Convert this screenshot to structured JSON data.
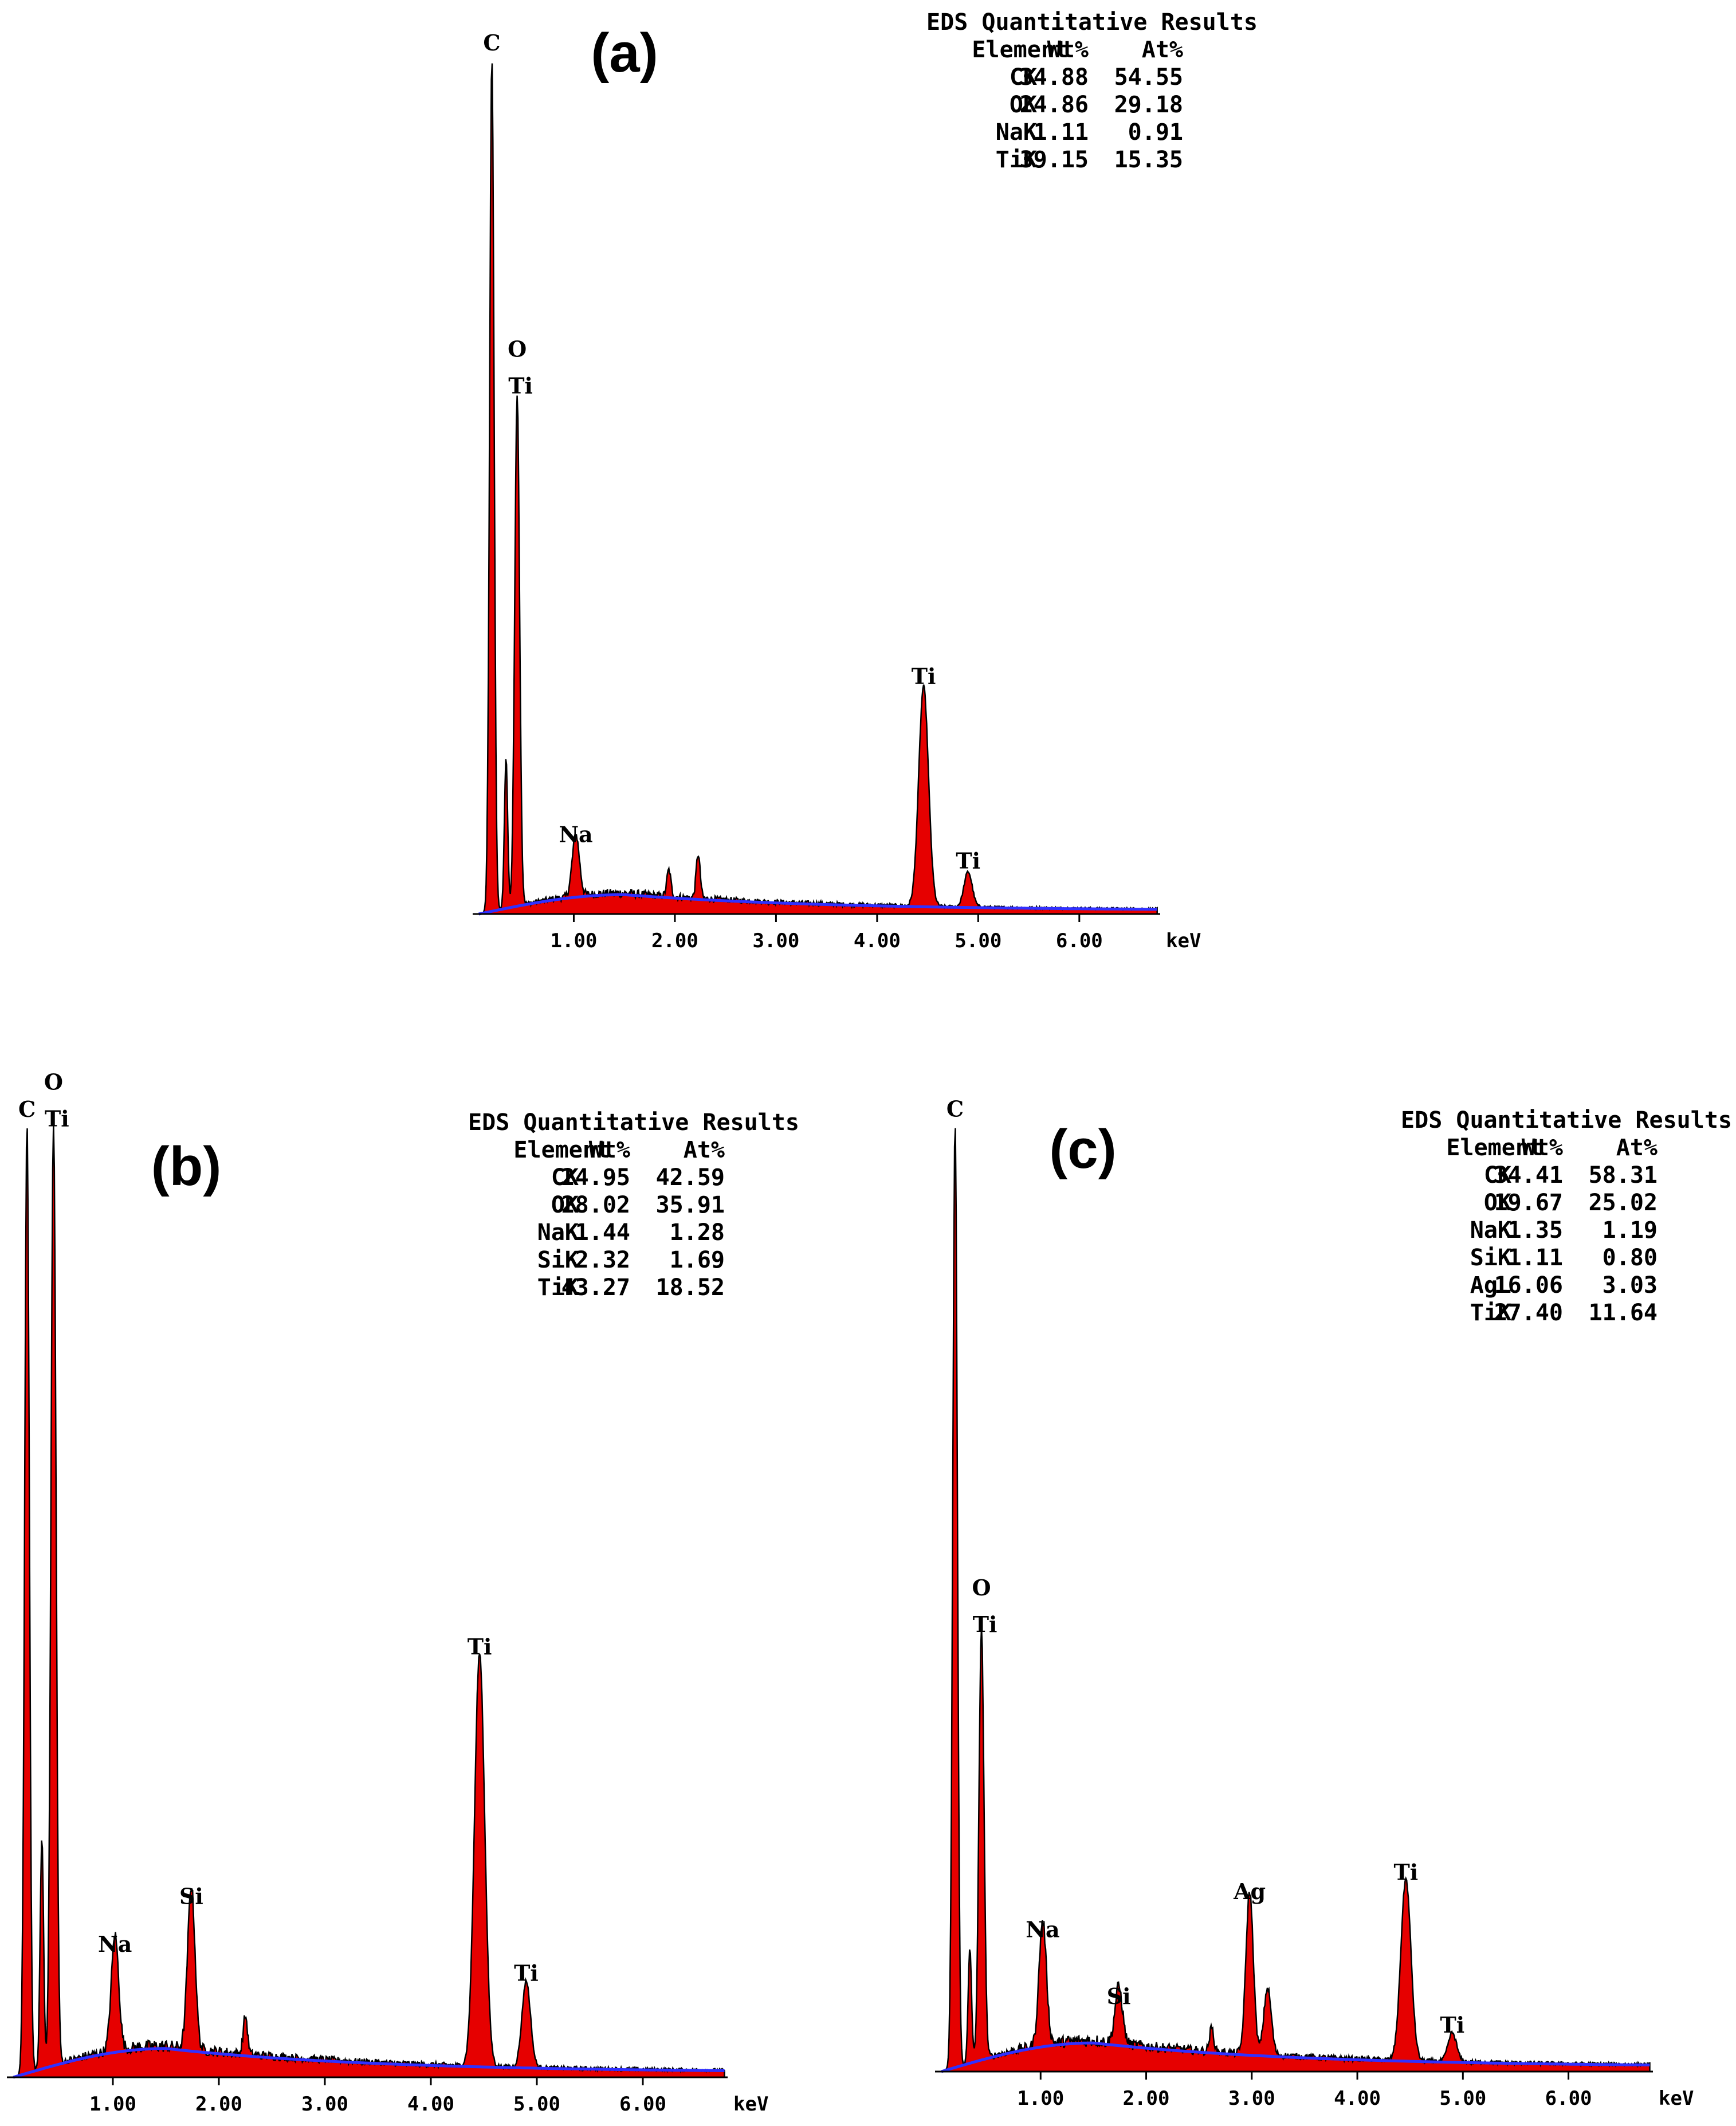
{
  "colors": {
    "spectrum": "#e60000",
    "background": "#3030ff",
    "outline": "#000000"
  },
  "chart_data": [
    {
      "type": "area",
      "panel_label": "(a)",
      "x_unit_label": "keV",
      "x_tick_labels": [
        "1.00",
        "2.00",
        "3.00",
        "4.00",
        "5.00",
        "6.00"
      ],
      "xlim": [
        0,
        6.8
      ],
      "ylim": [
        0,
        1.0
      ],
      "table": {
        "title": "EDS Quantitative Results",
        "headers": [
          "Element",
          "Wt%",
          "At%"
        ],
        "rows": [
          [
            "CK",
            "34.88",
            "54.55"
          ],
          [
            "OK",
            "24.86",
            "29.18"
          ],
          [
            "NaK",
            "1.11",
            "0.91"
          ],
          [
            "TiK",
            "39.15",
            "15.35"
          ]
        ]
      },
      "peaks": [
        {
          "x": 0.19,
          "y": 0.97,
          "width": 0.022,
          "label": "C"
        },
        {
          "x": 0.33,
          "y": 0.17,
          "width": 0.016,
          "label": ""
        },
        {
          "x": 0.44,
          "y": 0.58,
          "width": 0.024,
          "label": "O\nTi"
        },
        {
          "x": 1.02,
          "y": 0.07,
          "width": 0.035,
          "label": "Na"
        },
        {
          "x": 1.94,
          "y": 0.03,
          "width": 0.02,
          "label": ""
        },
        {
          "x": 2.23,
          "y": 0.05,
          "width": 0.02,
          "label": ""
        },
        {
          "x": 4.46,
          "y": 0.25,
          "width": 0.048,
          "label": "Ti"
        },
        {
          "x": 4.9,
          "y": 0.04,
          "width": 0.04,
          "label": "Ti"
        }
      ],
      "background": {
        "peak_x": 1.5,
        "peak_y": 0.022,
        "tail_y": 0.004
      }
    },
    {
      "type": "area",
      "panel_label": "(b)",
      "x_unit_label": "keV",
      "x_tick_labels": [
        "1.00",
        "2.00",
        "3.00",
        "4.00",
        "5.00",
        "6.00"
      ],
      "xlim": [
        0,
        6.8
      ],
      "ylim": [
        0,
        1.0
      ],
      "table": {
        "title": "EDS Quantitative Results",
        "headers": [
          "Element",
          "Wt%",
          "At%"
        ],
        "rows": [
          [
            "CK",
            "24.95",
            "42.59"
          ],
          [
            "OK",
            "28.02",
            "35.91"
          ],
          [
            "NaK",
            "1.44",
            "1.28"
          ],
          [
            "SiK",
            "2.32",
            "1.69"
          ],
          [
            "TiK",
            "43.27",
            "18.52"
          ]
        ]
      },
      "peaks": [
        {
          "x": 0.19,
          "y": 0.99,
          "width": 0.022,
          "label": "C"
        },
        {
          "x": 0.33,
          "y": 0.24,
          "width": 0.016,
          "label": ""
        },
        {
          "x": 0.44,
          "y": 0.98,
          "width": 0.024,
          "label": "O\nTi"
        },
        {
          "x": 1.02,
          "y": 0.12,
          "width": 0.035,
          "label": "Na"
        },
        {
          "x": 1.74,
          "y": 0.17,
          "width": 0.035,
          "label": "Si"
        },
        {
          "x": 2.25,
          "y": 0.04,
          "width": 0.02,
          "label": ""
        },
        {
          "x": 4.46,
          "y": 0.43,
          "width": 0.048,
          "label": "Ti"
        },
        {
          "x": 4.9,
          "y": 0.09,
          "width": 0.04,
          "label": "Ti"
        }
      ],
      "background": {
        "peak_x": 1.5,
        "peak_y": 0.03,
        "tail_y": 0.005
      }
    },
    {
      "type": "area",
      "panel_label": "(c)",
      "x_unit_label": "keV",
      "x_tick_labels": [
        "1.00",
        "2.00",
        "3.00",
        "4.00",
        "5.00",
        "6.00"
      ],
      "xlim": [
        0,
        6.8
      ],
      "ylim": [
        0,
        1.0
      ],
      "table": {
        "title": "EDS Quantitative Results",
        "headers": [
          "Element",
          "Wt%",
          "At%"
        ],
        "rows": [
          [
            "CK",
            "34.41",
            "58.31"
          ],
          [
            "OK",
            "19.67",
            "25.02"
          ],
          [
            "NaK",
            "1.35",
            "1.19"
          ],
          [
            "SiK",
            "1.11",
            "0.80"
          ],
          [
            "AgL",
            "16.06",
            "3.03"
          ],
          [
            "TiK",
            "27.40",
            "11.64"
          ]
        ]
      },
      "peaks": [
        {
          "x": 0.19,
          "y": 0.99,
          "width": 0.022,
          "label": "C"
        },
        {
          "x": 0.33,
          "y": 0.12,
          "width": 0.016,
          "label": ""
        },
        {
          "x": 0.44,
          "y": 0.45,
          "width": 0.024,
          "label": "O\nTi"
        },
        {
          "x": 1.02,
          "y": 0.13,
          "width": 0.035,
          "label": "Na"
        },
        {
          "x": 1.74,
          "y": 0.06,
          "width": 0.035,
          "label": "Si"
        },
        {
          "x": 2.62,
          "y": 0.025,
          "width": 0.02,
          "label": ""
        },
        {
          "x": 2.98,
          "y": 0.17,
          "width": 0.035,
          "label": "Ag"
        },
        {
          "x": 3.15,
          "y": 0.07,
          "width": 0.035,
          "label": ""
        },
        {
          "x": 4.46,
          "y": 0.19,
          "width": 0.048,
          "label": "Ti"
        },
        {
          "x": 4.9,
          "y": 0.03,
          "width": 0.04,
          "label": "Ti"
        }
      ],
      "background": {
        "peak_x": 1.5,
        "peak_y": 0.03,
        "tail_y": 0.005
      }
    }
  ]
}
